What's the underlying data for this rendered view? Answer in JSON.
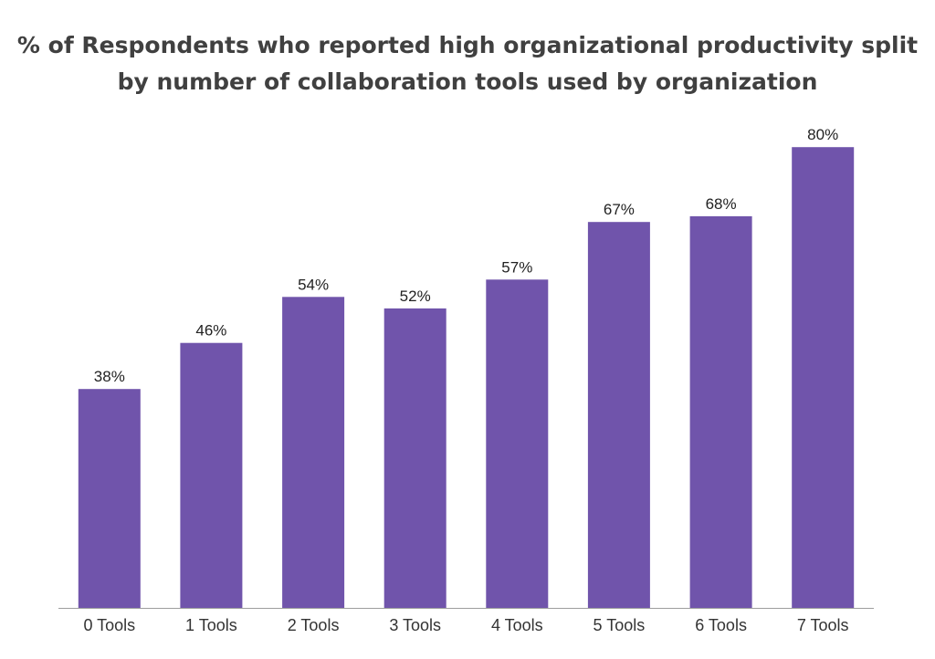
{
  "chart_data": {
    "type": "bar",
    "title_lines": [
      "% of Respondents who reported high organizational productivity split",
      "by number of collaboration tools used by organization"
    ],
    "xlabel": "",
    "ylabel": "",
    "categories": [
      "0 Tools",
      "1 Tools",
      "2 Tools",
      "3 Tools",
      "4 Tools",
      "5 Tools",
      "6 Tools",
      "7 Tools"
    ],
    "values": [
      38,
      46,
      54,
      52,
      57,
      67,
      68,
      80
    ],
    "value_labels": [
      "38%",
      "46%",
      "54%",
      "52%",
      "57%",
      "67%",
      "68%",
      "80%"
    ],
    "ylim": [
      0,
      100
    ],
    "grid": false,
    "legend": "none",
    "bar_color": "#7054AB",
    "axis_color": "#9E9E9E"
  }
}
